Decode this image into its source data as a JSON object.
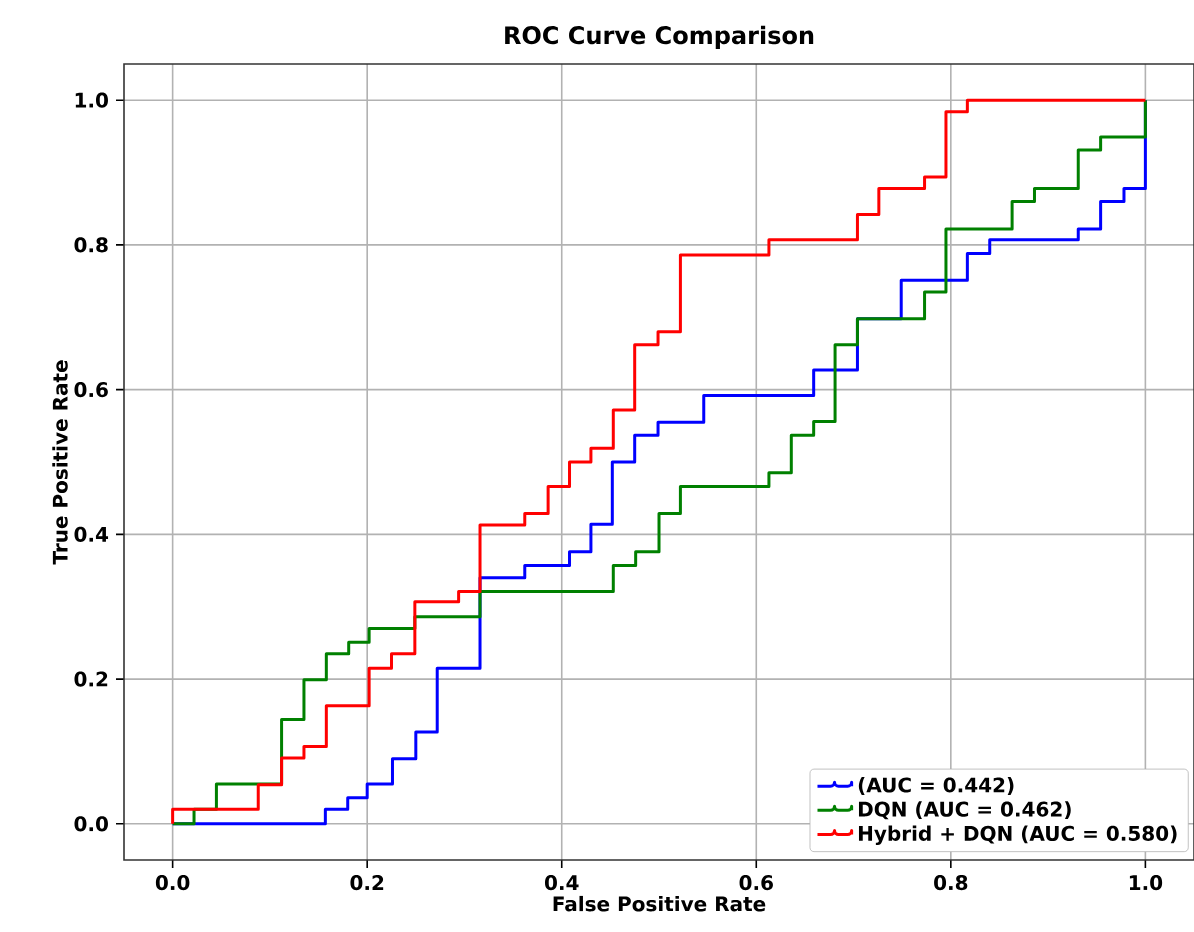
{
  "chart_data": {
    "type": "step",
    "title": "ROC Curve Comparison",
    "xlabel": "False Positive Rate",
    "ylabel": "True Positive Rate",
    "xlim": [
      -0.05,
      1.05
    ],
    "ylim": [
      -0.05,
      1.05
    ],
    "xticks": [
      {
        "value": 0,
        "label": "0.0"
      },
      {
        "value": 0.2,
        "label": "0.2"
      },
      {
        "value": 0.4,
        "label": "0.4"
      },
      {
        "value": 0.6,
        "label": "0.6"
      },
      {
        "value": 0.8,
        "label": "0.8"
      },
      {
        "value": 1,
        "label": "1.0"
      }
    ],
    "yticks": [
      {
        "value": 0,
        "label": "0.0"
      },
      {
        "value": 0.2,
        "label": "0.2"
      },
      {
        "value": 0.4,
        "label": "0.4"
      },
      {
        "value": 0.6,
        "label": "0.6"
      },
      {
        "value": 0.8,
        "label": "0.8"
      },
      {
        "value": 1,
        "label": "1.0"
      }
    ],
    "grid": true,
    "legend": "bottom right",
    "series": [
      {
        "name": "(AUC = 0.442)",
        "color": "#0000ff",
        "x": [
          0,
          0.157,
          0.18,
          0.2,
          0.226,
          0.25,
          0.272,
          0.316,
          0.362,
          0.408,
          0.43,
          0.452,
          0.475,
          0.499,
          0.546,
          0.659,
          0.704,
          0.749,
          0.817,
          0.84,
          0.931,
          0.954,
          0.978,
          1.0,
          1.0
        ],
        "values": [
          0,
          0.02,
          0.036,
          0.055,
          0.09,
          0.127,
          0.215,
          0.34,
          0.357,
          0.376,
          0.414,
          0.5,
          0.537,
          0.555,
          0.592,
          0.627,
          0.698,
          0.751,
          0.788,
          0.807,
          0.822,
          0.86,
          0.878,
          1.0,
          1.0
        ]
      },
      {
        "name": "DQN (AUC = 0.462)",
        "color": "#008000",
        "x": [
          0,
          0.022,
          0.045,
          0.112,
          0.135,
          0.158,
          0.181,
          0.202,
          0.249,
          0.316,
          0.453,
          0.476,
          0.5,
          0.522,
          0.613,
          0.636,
          0.659,
          0.681,
          0.704,
          0.773,
          0.795,
          0.863,
          0.886,
          0.931,
          0.954,
          1.0,
          1.0
        ],
        "values": [
          0,
          0.02,
          0.055,
          0.144,
          0.199,
          0.235,
          0.251,
          0.27,
          0.286,
          0.321,
          0.357,
          0.376,
          0.429,
          0.466,
          0.485,
          0.537,
          0.556,
          0.662,
          0.698,
          0.735,
          0.822,
          0.86,
          0.878,
          0.931,
          0.949,
          1.0,
          1.0
        ]
      },
      {
        "name": "Hybrid + DQN (AUC = 0.580)",
        "color": "#ff0000",
        "x": [
          0,
          0,
          0.088,
          0.112,
          0.135,
          0.158,
          0.202,
          0.225,
          0.249,
          0.294,
          0.316,
          0.362,
          0.386,
          0.408,
          0.43,
          0.453,
          0.475,
          0.499,
          0.522,
          0.613,
          0.704,
          0.726,
          0.773,
          0.795,
          0.817,
          1.0
        ],
        "values": [
          0,
          0.02,
          0.054,
          0.091,
          0.107,
          0.163,
          0.215,
          0.235,
          0.307,
          0.321,
          0.413,
          0.429,
          0.466,
          0.5,
          0.519,
          0.572,
          0.662,
          0.68,
          0.786,
          0.807,
          0.842,
          0.878,
          0.894,
          0.984,
          1.0,
          1.0
        ]
      }
    ]
  }
}
